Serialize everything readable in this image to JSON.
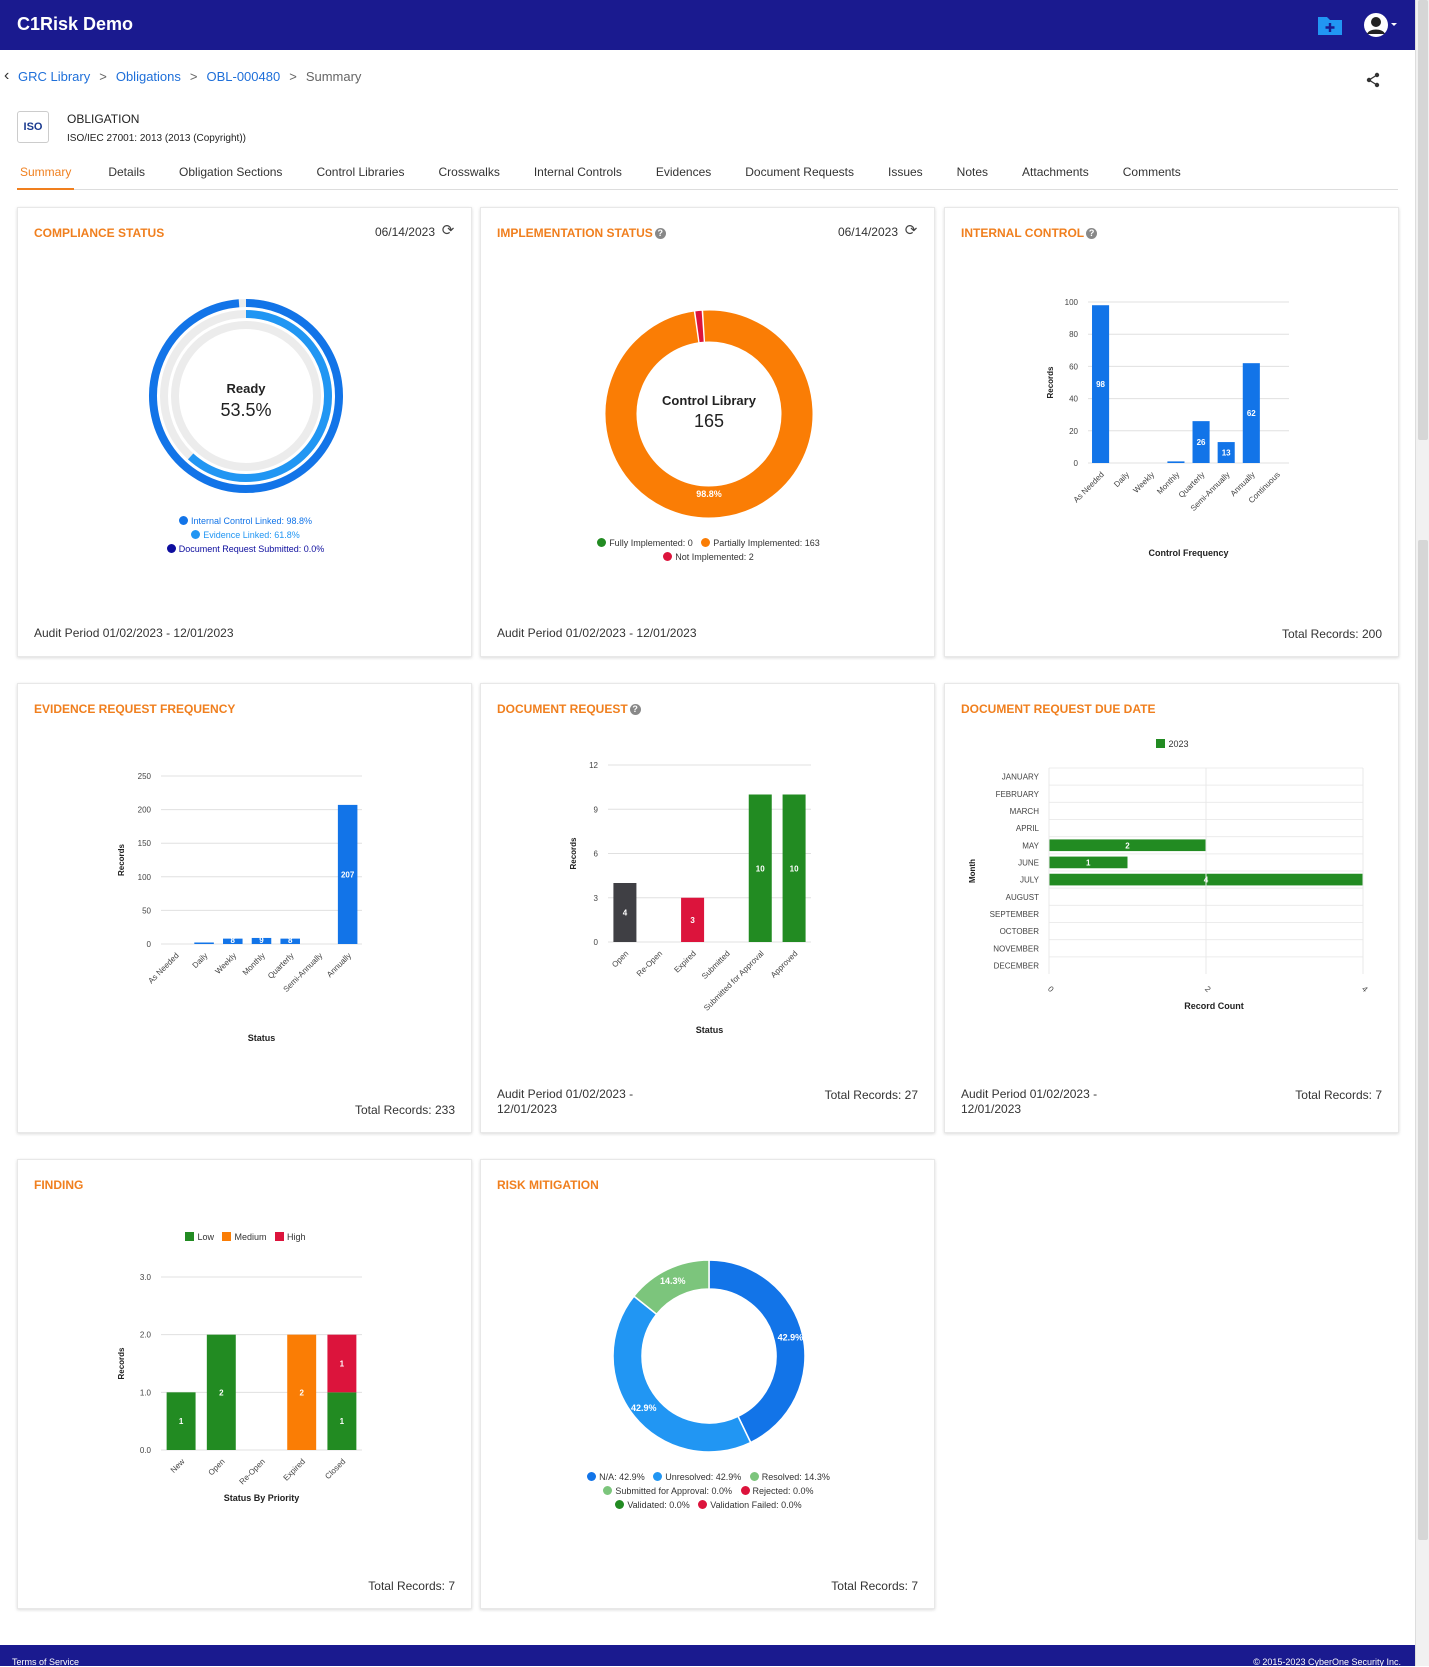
{
  "app": {
    "title": "C1Risk Demo"
  },
  "breadcrumb": {
    "items": [
      "GRC Library",
      "Obligations",
      "OBL-000480"
    ],
    "current": "Summary"
  },
  "obligation": {
    "logo_text": "ISO",
    "type": "OBLIGATION",
    "name": "ISO/IEC 27001: 2013 (2013 (Copyright))"
  },
  "tabs": [
    "Summary",
    "Details",
    "Obligation Sections",
    "Control Libraries",
    "Crosswalks",
    "Internal Controls",
    "Evidences",
    "Document Requests",
    "Issues",
    "Notes",
    "Attachments",
    "Comments"
  ],
  "colors": {
    "accent": "#f07f1e",
    "nav": "#1a1a8f",
    "blue": "#1274e8",
    "green": "#228b22",
    "red": "#dc143c",
    "orange": "#fa7d05",
    "dark": "#3f3f44"
  },
  "compliance": {
    "title": "COMPLIANCE STATUS",
    "date": "06/14/2023",
    "center_label": "Ready",
    "center_value": "53.5%",
    "legend": [
      "Internal Control Linked: 98.8%",
      "Evidence Linked: 61.8%",
      "Document Request Submitted: 0.0%"
    ],
    "footer": "Audit Period 01/02/2023 - 12/01/2023",
    "chart_data": {
      "type": "radial",
      "series": [
        {
          "name": "Internal Control Linked",
          "value": 98.8
        },
        {
          "name": "Evidence Linked",
          "value": 61.8
        },
        {
          "name": "Document Request Submitted",
          "value": 0.0
        }
      ],
      "center": {
        "label": "Ready",
        "value": 53.5
      }
    }
  },
  "implementation": {
    "title": "IMPLEMENTATION STATUS",
    "date": "06/14/2023",
    "center_label": "Control Library",
    "center_value": "165",
    "slice_label": "98.8%",
    "legend": [
      "Fully Implemented: 0",
      "Partially Implemented: 163",
      "Not Implemented: 2"
    ],
    "footer": "Audit Period 01/02/2023 - 12/01/2023",
    "chart_data": {
      "type": "pie",
      "labels": [
        "Fully Implemented",
        "Partially Implemented",
        "Not Implemented"
      ],
      "values": [
        0,
        163,
        2
      ],
      "total": 165
    }
  },
  "internal_control": {
    "title": "INTERNAL CONTROL",
    "footer": "Total Records: 200",
    "chart_data": {
      "type": "bar",
      "categories": [
        "As Needed",
        "Daily",
        "Weekly",
        "Monthly",
        "Quarterly",
        "Semi-Annually",
        "Annually",
        "Continuous"
      ],
      "values": [
        98,
        0,
        0,
        1,
        26,
        13,
        62,
        0
      ],
      "ylabel": "Records",
      "xlabel": "Control Frequency",
      "yticks": [
        0,
        20,
        40,
        60,
        80,
        100
      ],
      "ylim": [
        0,
        100
      ]
    }
  },
  "evidence_frequency": {
    "title": "EVIDENCE REQUEST FREQUENCY",
    "footer": "Total Records: 233",
    "chart_data": {
      "type": "bar",
      "categories": [
        "As Needed",
        "Daily",
        "Weekly",
        "Monthly",
        "Quarterly",
        "Semi-Annually",
        "Annually"
      ],
      "values": [
        0,
        1,
        8,
        9,
        8,
        0,
        207
      ],
      "value_labels": [
        "",
        "",
        "8",
        "9",
        "8",
        "",
        "207"
      ],
      "ylabel": "Records",
      "xlabel": "Status",
      "yticks": [
        0,
        50,
        100,
        150,
        200,
        250
      ],
      "ylim": [
        0,
        250
      ]
    }
  },
  "document_request": {
    "title": "DOCUMENT REQUEST",
    "footer_left": "Audit Period 01/02/2023 - 12/01/2023",
    "footer_right": "Total Records: 27",
    "chart_data": {
      "type": "bar",
      "categories": [
        "Open",
        "Re-Open",
        "Expired",
        "Submitted",
        "Submitted for Approval",
        "Approved"
      ],
      "values": [
        4,
        0,
        3,
        0,
        10,
        10
      ],
      "bar_colors": [
        "#3f3f44",
        "#3f3f44",
        "#dc143c",
        "#228b22",
        "#228b22",
        "#228b22"
      ],
      "ylabel": "Records",
      "xlabel": "Status",
      "yticks": [
        0,
        3,
        6,
        9,
        12
      ],
      "ylim": [
        0,
        12
      ]
    }
  },
  "due_date": {
    "title": "DOCUMENT REQUEST DUE DATE",
    "footer_left": "Audit Period 01/02/2023 - 12/01/2023",
    "footer_right": "Total Records: 7",
    "chart_data": {
      "type": "bar",
      "orientation": "horizontal",
      "series_name": "2023",
      "categories": [
        "JANUARY",
        "FEBRUARY",
        "MARCH",
        "APRIL",
        "MAY",
        "JUNE",
        "JULY",
        "AUGUST",
        "SEPTEMBER",
        "OCTOBER",
        "NOVEMBER",
        "DECEMBER"
      ],
      "values": [
        0,
        0,
        0,
        0,
        2,
        1,
        4,
        0,
        0,
        0,
        0,
        0
      ],
      "ylabel": "Month",
      "xlabel": "Record Count",
      "xticks": [
        0,
        2,
        4
      ],
      "xlim": [
        0,
        4
      ]
    }
  },
  "finding": {
    "title": "FINDING",
    "footer": "Total Records: 7",
    "chart_data": {
      "type": "bar",
      "stacked": true,
      "categories": [
        "New",
        "Open",
        "Re-Open",
        "Expired",
        "Closed"
      ],
      "series": [
        {
          "name": "Low",
          "color": "#228b22",
          "values": [
            1,
            2,
            0,
            0,
            1
          ]
        },
        {
          "name": "Medium",
          "color": "#fa7d05",
          "values": [
            0,
            0,
            0,
            2,
            0
          ]
        },
        {
          "name": "High",
          "color": "#dc143c",
          "values": [
            0,
            0,
            0,
            0,
            1
          ]
        }
      ],
      "ylabel": "Records",
      "xlabel": "Status By Priority",
      "yticks": [
        "0.0",
        "1.0",
        "2.0",
        "3.0"
      ],
      "ylim": [
        0,
        3
      ]
    }
  },
  "risk": {
    "title": "RISK MITIGATION",
    "footer": "Total Records: 7",
    "legend": [
      "N/A: 42.9%",
      "Unresolved: 42.9%",
      "Resolved: 14.3%",
      "Submitted for Approval: 0.0%",
      "Rejected: 0.0%",
      "Validated: 0.0%",
      "Validation Failed: 0.0%"
    ],
    "chart_data": {
      "type": "pie",
      "labels": [
        "N/A",
        "Unresolved",
        "Resolved",
        "Submitted for Approval",
        "Rejected",
        "Validated",
        "Validation Failed"
      ],
      "values": [
        42.9,
        42.9,
        14.3,
        0,
        0,
        0,
        0
      ],
      "colors": [
        "#1274e8",
        "#2196f3",
        "#7cc57c",
        "#7cc57c",
        "#dc143c",
        "#228b22",
        "#dc143c"
      ]
    }
  },
  "footer": {
    "terms": "Terms of Service",
    "copyright": "© 2015-2023 CyberOne Security Inc."
  }
}
